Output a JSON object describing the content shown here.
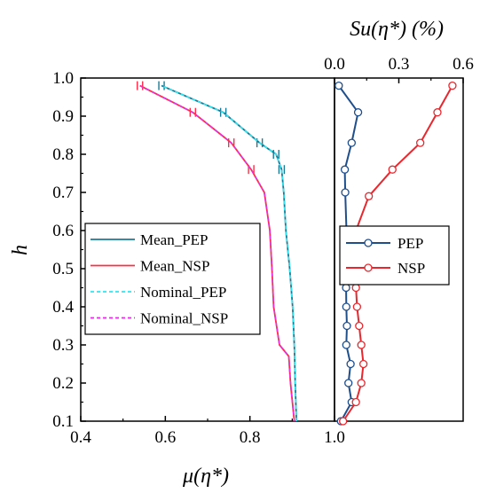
{
  "chart_data": [
    {
      "type": "line",
      "xlabel": "μ(η*)",
      "ylabel": "h",
      "xlim": [
        0.4,
        1.0
      ],
      "ylim": [
        0.1,
        1.0
      ],
      "x_ticks": [
        "0.4",
        "0.6",
        "0.8",
        "1.0"
      ],
      "y_ticks": [
        "0.1",
        "0.2",
        "0.3",
        "0.4",
        "0.5",
        "0.6",
        "0.7",
        "0.8",
        "0.9",
        "1.0"
      ],
      "grid": false,
      "legend_position": "center-left",
      "series": [
        {
          "name": "Mean_PEP",
          "color": "#1a7a96",
          "style": "solid",
          "error_bars": true,
          "points": [
            {
              "h": 0.1,
              "x": 0.91
            },
            {
              "h": 0.2,
              "x": 0.907
            },
            {
              "h": 0.3,
              "x": 0.905
            },
            {
              "h": 0.4,
              "x": 0.901
            },
            {
              "h": 0.5,
              "x": 0.894
            },
            {
              "h": 0.6,
              "x": 0.885
            },
            {
              "h": 0.7,
              "x": 0.88
            },
            {
              "h": 0.76,
              "x": 0.875
            },
            {
              "h": 0.8,
              "x": 0.862
            },
            {
              "h": 0.83,
              "x": 0.823
            },
            {
              "h": 0.91,
              "x": 0.737
            },
            {
              "h": 0.98,
              "x": 0.591
            }
          ]
        },
        {
          "name": "Mean_NSP",
          "color": "#ff2d45",
          "style": "solid",
          "error_bars": true,
          "points": [
            {
              "h": 0.1,
              "x": 0.905
            },
            {
              "h": 0.2,
              "x": 0.896
            },
            {
              "h": 0.27,
              "x": 0.892
            },
            {
              "h": 0.3,
              "x": 0.87
            },
            {
              "h": 0.4,
              "x": 0.856
            },
            {
              "h": 0.5,
              "x": 0.852
            },
            {
              "h": 0.6,
              "x": 0.847
            },
            {
              "h": 0.7,
              "x": 0.834
            },
            {
              "h": 0.76,
              "x": 0.803
            },
            {
              "h": 0.83,
              "x": 0.756
            },
            {
              "h": 0.91,
              "x": 0.665
            },
            {
              "h": 0.98,
              "x": 0.54
            }
          ]
        },
        {
          "name": "Nominal_PEP",
          "color": "#2ee6f0",
          "style": "dashed",
          "error_bars": false,
          "points": [
            {
              "h": 0.1,
              "x": 0.91
            },
            {
              "h": 0.2,
              "x": 0.907
            },
            {
              "h": 0.3,
              "x": 0.905
            },
            {
              "h": 0.4,
              "x": 0.901
            },
            {
              "h": 0.5,
              "x": 0.894
            },
            {
              "h": 0.6,
              "x": 0.885
            },
            {
              "h": 0.7,
              "x": 0.88
            },
            {
              "h": 0.76,
              "x": 0.875
            },
            {
              "h": 0.8,
              "x": 0.862
            },
            {
              "h": 0.83,
              "x": 0.823
            },
            {
              "h": 0.91,
              "x": 0.737
            },
            {
              "h": 0.98,
              "x": 0.591
            }
          ]
        },
        {
          "name": "Nominal_NSP",
          "color": "#e62ee6",
          "style": "dashed",
          "error_bars": false,
          "points": [
            {
              "h": 0.1,
              "x": 0.905
            },
            {
              "h": 0.2,
              "x": 0.896
            },
            {
              "h": 0.27,
              "x": 0.892
            },
            {
              "h": 0.3,
              "x": 0.87
            },
            {
              "h": 0.4,
              "x": 0.856
            },
            {
              "h": 0.5,
              "x": 0.852
            },
            {
              "h": 0.6,
              "x": 0.847
            },
            {
              "h": 0.7,
              "x": 0.834
            },
            {
              "h": 0.76,
              "x": 0.803
            },
            {
              "h": 0.83,
              "x": 0.756
            },
            {
              "h": 0.91,
              "x": 0.665
            },
            {
              "h": 0.98,
              "x": 0.54
            }
          ]
        }
      ]
    },
    {
      "type": "line",
      "xlabel": "Su(η*) (%)",
      "ylabel": "h",
      "xlim": [
        0.0,
        0.6
      ],
      "ylim": [
        0.1,
        1.0
      ],
      "x_ticks": [
        "0.0",
        "0.3",
        "0.6"
      ],
      "grid": false,
      "legend_position": "center",
      "series": [
        {
          "name": "PEP",
          "color": "#1f4e8c",
          "marker": "open-circle",
          "points": [
            {
              "h": 0.1,
              "x": 0.03
            },
            {
              "h": 0.15,
              "x": 0.08
            },
            {
              "h": 0.2,
              "x": 0.065
            },
            {
              "h": 0.25,
              "x": 0.075
            },
            {
              "h": 0.3,
              "x": 0.055
            },
            {
              "h": 0.35,
              "x": 0.058
            },
            {
              "h": 0.4,
              "x": 0.055
            },
            {
              "h": 0.45,
              "x": 0.054
            },
            {
              "h": 0.5,
              "x": 0.053
            },
            {
              "h": 0.55,
              "x": 0.057
            },
            {
              "h": 0.6,
              "x": 0.056
            },
            {
              "h": 0.7,
              "x": 0.05
            },
            {
              "h": 0.76,
              "x": 0.048
            },
            {
              "h": 0.83,
              "x": 0.08
            },
            {
              "h": 0.91,
              "x": 0.11
            },
            {
              "h": 0.98,
              "x": 0.02
            }
          ]
        },
        {
          "name": "NSP",
          "color": "#e8282e",
          "marker": "open-circle",
          "points": [
            {
              "h": 0.1,
              "x": 0.04
            },
            {
              "h": 0.15,
              "x": 0.1
            },
            {
              "h": 0.2,
              "x": 0.125
            },
            {
              "h": 0.25,
              "x": 0.135
            },
            {
              "h": 0.3,
              "x": 0.125
            },
            {
              "h": 0.35,
              "x": 0.115
            },
            {
              "h": 0.4,
              "x": 0.105
            },
            {
              "h": 0.45,
              "x": 0.1
            },
            {
              "h": 0.5,
              "x": 0.09
            },
            {
              "h": 0.55,
              "x": 0.085
            },
            {
              "h": 0.6,
              "x": 0.1
            },
            {
              "h": 0.69,
              "x": 0.16
            },
            {
              "h": 0.76,
              "x": 0.27
            },
            {
              "h": 0.83,
              "x": 0.4
            },
            {
              "h": 0.91,
              "x": 0.48
            },
            {
              "h": 0.98,
              "x": 0.55
            }
          ]
        }
      ]
    }
  ]
}
